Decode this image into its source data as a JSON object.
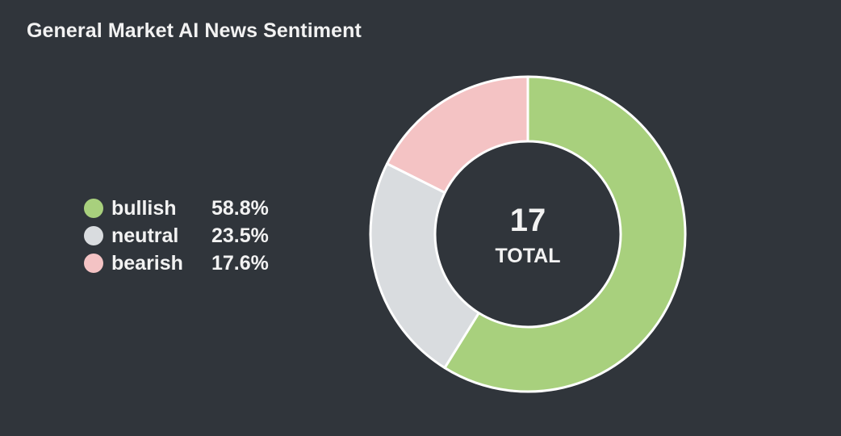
{
  "title": "General Market AI News Sentiment",
  "chart_data": {
    "type": "pie",
    "title": "General Market AI News Sentiment",
    "total": "17",
    "total_label": "TOTAL",
    "slices": [
      {
        "name": "bullish",
        "value": 58.8,
        "value_label": "58.8%",
        "color": "#a8d07d"
      },
      {
        "name": "neutral",
        "value": 23.5,
        "value_label": "23.5%",
        "color": "#d9dcdf"
      },
      {
        "name": "bearish",
        "value": 17.6,
        "value_label": "17.6%",
        "color": "#f4c3c4"
      }
    ]
  },
  "colors": {
    "background": "#30353b",
    "text": "#f2f2f2",
    "slice_border": "#ffffff"
  }
}
